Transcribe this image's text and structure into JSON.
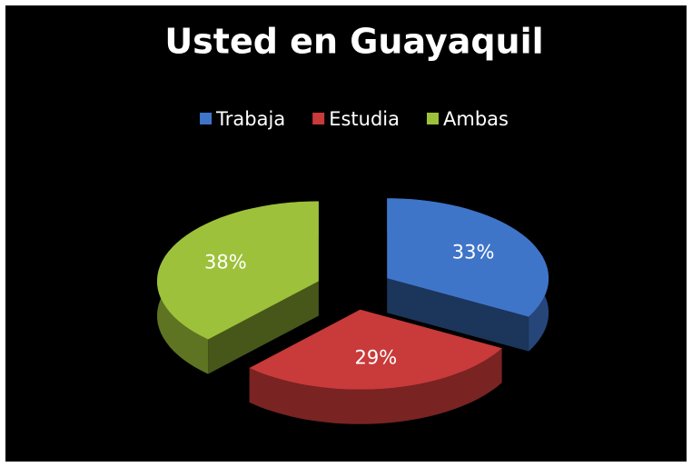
{
  "chart_data": {
    "type": "pie",
    "title": "Usted en Guayaquil",
    "categories": [
      "Trabaja",
      "Estudia",
      "Ambas"
    ],
    "values": [
      33,
      29,
      38
    ],
    "value_labels": [
      "33%",
      "29%",
      "38%"
    ],
    "colors": [
      "#3f75c9",
      "#c93a3a",
      "#9dc13a"
    ],
    "legend": "top"
  }
}
